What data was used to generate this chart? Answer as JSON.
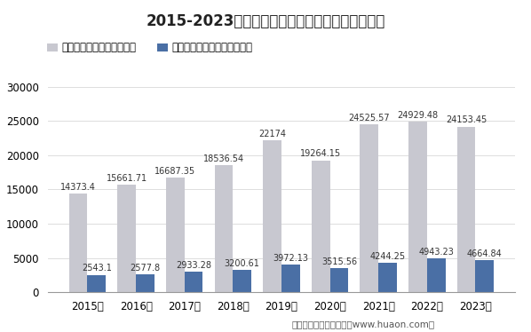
{
  "title": "2015-2023年广东各房屋建筑竺工面积及竺工价値",
  "years": [
    "2015年",
    "2016年",
    "2017年",
    "2018年",
    "2019年",
    "2020年",
    "2021年",
    "2022年",
    "2023年"
  ],
  "area_values": [
    14373.4,
    15661.71,
    16687.35,
    18536.54,
    22174,
    19264.15,
    24525.57,
    24929.48,
    24153.45
  ],
  "value_values": [
    2543.1,
    2577.8,
    2933.28,
    3200.61,
    3972.13,
    3515.56,
    4244.25,
    4943.23,
    4664.84
  ],
  "area_label": "房屋建筑竺工面积（万㎡）",
  "value_label": "房屋建筑业竺工价値（亿元）",
  "area_color": "#c8c8d0",
  "value_color": "#4a6fa5",
  "ylim": [
    0,
    32000
  ],
  "yticks": [
    0,
    5000,
    10000,
    15000,
    20000,
    25000,
    30000
  ],
  "bar_width": 0.38,
  "background_color": "#ffffff",
  "footer": "制图：华经产业研究院（www.huaon.com）",
  "title_fontsize": 12,
  "legend_fontsize": 8.5,
  "tick_fontsize": 8.5,
  "label_fontsize": 7
}
